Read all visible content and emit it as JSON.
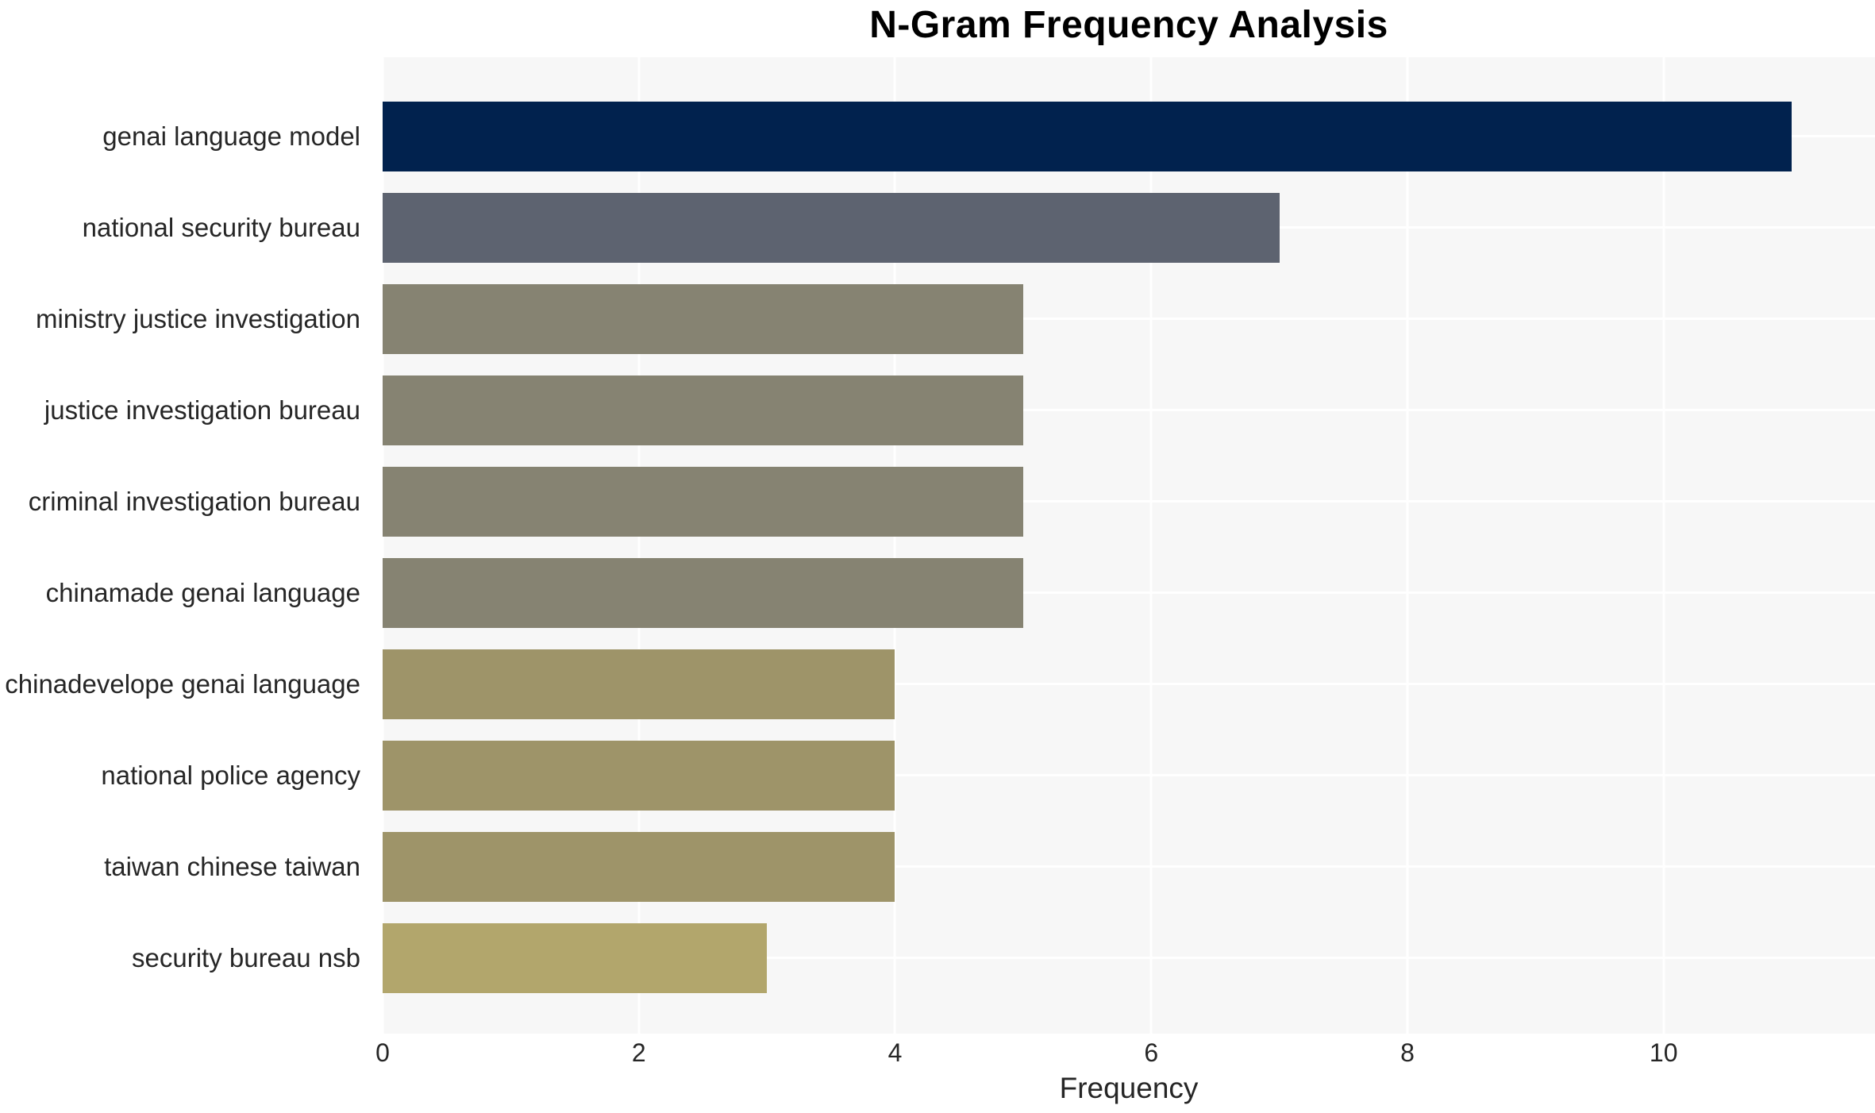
{
  "title": "N-Gram Frequency Analysis",
  "chart_data": {
    "type": "bar",
    "orientation": "horizontal",
    "title": "N-Gram Frequency Analysis",
    "xlabel": "Frequency",
    "ylabel": "",
    "categories": [
      "genai language model",
      "national security bureau",
      "ministry justice investigation",
      "justice investigation bureau",
      "criminal investigation bureau",
      "chinamade genai language",
      "chinadevelope genai language",
      "national police agency",
      "taiwan chinese taiwan",
      "security bureau nsb"
    ],
    "values": [
      11,
      7,
      5,
      5,
      5,
      5,
      4,
      4,
      4,
      3
    ],
    "bar_colors": [
      "#01224E",
      "#5D6370",
      "#868372",
      "#868372",
      "#868372",
      "#868372",
      "#9E9469",
      "#9E9469",
      "#9E9469",
      "#B2A66C"
    ],
    "xticks": [
      0,
      2,
      4,
      6,
      8,
      10
    ],
    "xlim": [
      0,
      11.65
    ],
    "grid": true,
    "legend": "none",
    "plot_background": "#f7f7f7",
    "grid_color": "#ffffff",
    "text_color": "#262626"
  }
}
